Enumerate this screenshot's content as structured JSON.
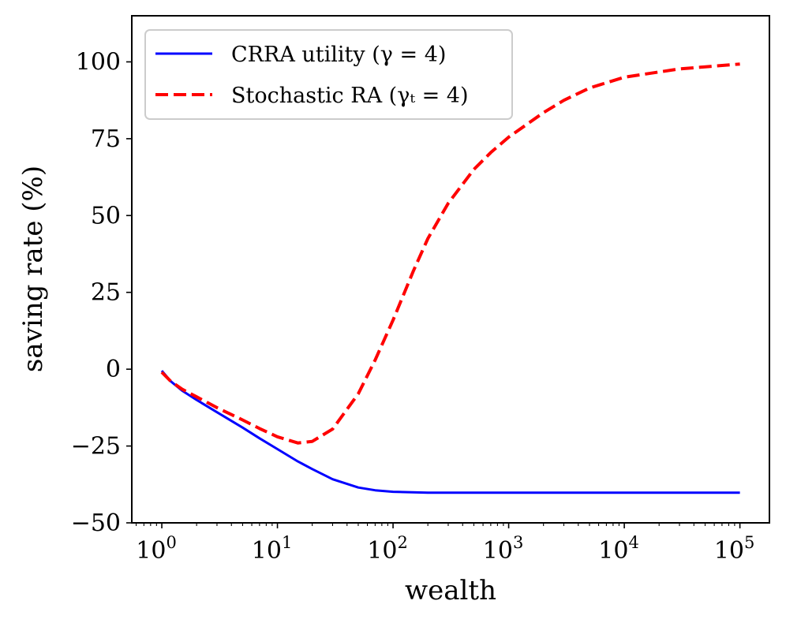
{
  "chart_data": {
    "type": "line",
    "title": "",
    "xlabel": "wealth",
    "ylabel": "saving rate (%)",
    "xscale": "log",
    "xlim": [
      0.55,
      180000
    ],
    "ylim": [
      -50,
      115
    ],
    "grid": false,
    "legend_position": "top-left",
    "x_ticks": [
      {
        "value": 1,
        "base": "10",
        "exp": "0"
      },
      {
        "value": 10,
        "base": "10",
        "exp": "1"
      },
      {
        "value": 100,
        "base": "10",
        "exp": "2"
      },
      {
        "value": 1000,
        "base": "10",
        "exp": "3"
      },
      {
        "value": 10000,
        "base": "10",
        "exp": "4"
      },
      {
        "value": 100000,
        "base": "10",
        "exp": "5"
      }
    ],
    "y_ticks": [
      {
        "value": -50,
        "label": "−50"
      },
      {
        "value": -25,
        "label": "−25"
      },
      {
        "value": 0,
        "label": "0"
      },
      {
        "value": 25,
        "label": "25"
      },
      {
        "value": 50,
        "label": "50"
      },
      {
        "value": 75,
        "label": "75"
      },
      {
        "value": 100,
        "label": "100"
      }
    ],
    "series": [
      {
        "name": "CRRA utility (γ = 4)",
        "color": "#0000ff",
        "style": "solid",
        "x": [
          1,
          1.2,
          1.5,
          2,
          3,
          5,
          7,
          10,
          15,
          20,
          30,
          50,
          70,
          100,
          200,
          500,
          1000,
          10000,
          100000
        ],
        "y": [
          -0.5,
          -4,
          -7,
          -10,
          -14,
          -19,
          -22.5,
          -26,
          -30,
          -32.5,
          -35.8,
          -38.5,
          -39.4,
          -39.9,
          -40.2,
          -40.2,
          -40.2,
          -40.2,
          -40.2
        ]
      },
      {
        "name": "Stochastic RA (γₜ = 4)",
        "color": "#ff0000",
        "style": "dashed",
        "x": [
          1,
          1.2,
          1.5,
          2,
          3,
          5,
          7,
          10,
          15,
          20,
          30,
          50,
          70,
          100,
          150,
          200,
          300,
          500,
          700,
          1000,
          2000,
          3000,
          5000,
          10000,
          30000,
          100000
        ],
        "y": [
          -1,
          -4,
          -6.5,
          -9,
          -12.5,
          -16.5,
          -19.3,
          -22,
          -24,
          -23.5,
          -19.5,
          -8,
          3,
          16,
          32,
          42.5,
          54,
          65,
          70.5,
          75.5,
          83.5,
          87.5,
          91.5,
          95,
          97.7,
          99.3
        ]
      }
    ]
  }
}
